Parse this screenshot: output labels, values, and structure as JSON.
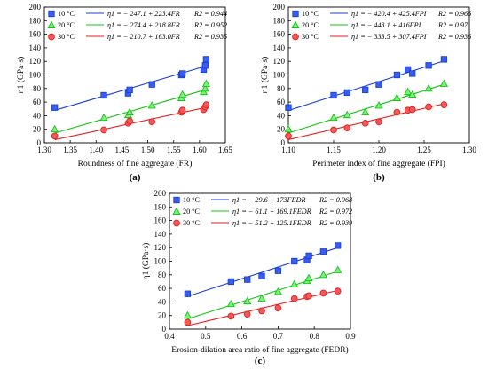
{
  "figure": {
    "series_colors": [
      "#1a3fd6",
      "#13c313",
      "#e61e1e"
    ],
    "marker_fills": [
      "#3a5cf0",
      "#7ff07f",
      "#f05a5a"
    ]
  },
  "chart_data": [
    {
      "type": "scatter",
      "panel_label": "(a)",
      "xlabel": "Roundness of fine aggregate (FR)",
      "ylabel": "η1 (GPa·s)",
      "xlim": [
        1.3,
        1.65
      ],
      "ylim": [
        0,
        200
      ],
      "xticks": [
        "1.30",
        "1.35",
        "1.40",
        "1.45",
        "1.50",
        "1.55",
        "1.60",
        "1.65"
      ],
      "yticks": [
        "0",
        "20",
        "40",
        "60",
        "80",
        "100",
        "120",
        "140",
        "160",
        "180",
        "200"
      ],
      "legend_position": "top-left",
      "series": [
        {
          "name": "10 °C",
          "equation": "η1 = − 247.1 + 223.4FR",
          "r2": "R2 = 0.944",
          "intercept": -247.1,
          "slope": 223.4,
          "x": [
            1.32,
            1.415,
            1.462,
            1.465,
            1.508,
            1.565,
            1.567,
            1.608,
            1.611,
            1.613
          ],
          "y": [
            52,
            70,
            73,
            78,
            86,
            100,
            102,
            108,
            114,
            123
          ]
        },
        {
          "name": "20 °C",
          "equation": "η1 = − 274.4 + 218.8FR",
          "r2": "R2 = 0.952",
          "intercept": -274.4,
          "slope": 218.8,
          "x": [
            1.32,
            1.415,
            1.462,
            1.465,
            1.508,
            1.565,
            1.567,
            1.608,
            1.611,
            1.613
          ],
          "y": [
            20,
            37,
            41,
            45,
            55,
            66,
            71,
            75,
            80,
            87
          ]
        },
        {
          "name": "30 °C",
          "equation": "η1 = − 210.7 + 163.0FR",
          "r2": "R2 = 0.935",
          "intercept": -210.7,
          "slope": 163.0,
          "x": [
            1.32,
            1.415,
            1.462,
            1.465,
            1.508,
            1.565,
            1.567,
            1.608,
            1.611,
            1.613
          ],
          "y": [
            10,
            19,
            29,
            32,
            31,
            45,
            48,
            49,
            53,
            56
          ]
        }
      ]
    },
    {
      "type": "scatter",
      "panel_label": "(b)",
      "xlabel": "Perimeter index of fine aggregate (FPI)",
      "ylabel": "η1 (GPa·s)",
      "xlim": [
        1.1,
        1.3
      ],
      "ylim": [
        0,
        200
      ],
      "xticks": [
        "1.10",
        "1.15",
        "1.20",
        "1.25",
        "1.30"
      ],
      "yticks": [
        "0",
        "20",
        "40",
        "60",
        "80",
        "100",
        "120",
        "140",
        "160",
        "180",
        "200"
      ],
      "legend_position": "top-left",
      "series": [
        {
          "name": "10 °C",
          "equation": "η1 = − 420.4 + 425.4FPI",
          "r2": "R2 = 0.966",
          "intercept": -420.4,
          "slope": 425.4,
          "x": [
            1.1,
            1.15,
            1.165,
            1.185,
            1.2,
            1.22,
            1.232,
            1.237,
            1.255,
            1.272
          ],
          "y": [
            52,
            70,
            74,
            78,
            86,
            100,
            108,
            102,
            114,
            123
          ]
        },
        {
          "name": "20 °C",
          "equation": "η1 = − 443.1 + 416FPI",
          "r2": "R2 = 0.97",
          "intercept": -443.1,
          "slope": 416.0,
          "x": [
            1.1,
            1.15,
            1.165,
            1.185,
            1.2,
            1.22,
            1.232,
            1.237,
            1.255,
            1.272
          ],
          "y": [
            20,
            37,
            41,
            45,
            55,
            66,
            75,
            71,
            80,
            87
          ]
        },
        {
          "name": "30 °C",
          "equation": "η1 = − 333.5 + 307.4FPI",
          "r2": "R2 = 0.936",
          "intercept": -333.5,
          "slope": 307.4,
          "x": [
            1.1,
            1.15,
            1.165,
            1.185,
            1.2,
            1.22,
            1.232,
            1.237,
            1.255,
            1.272
          ],
          "y": [
            10,
            19,
            22,
            29,
            31,
            45,
            48,
            49,
            53,
            56
          ]
        }
      ]
    },
    {
      "type": "scatter",
      "panel_label": "(c)",
      "xlabel": "Erosion-dilation area ratio of fine aggregate (FEDR)",
      "ylabel": "η1 (GPa·s)",
      "xlim": [
        0.4,
        0.9
      ],
      "ylim": [
        0,
        200
      ],
      "xticks": [
        "0.4",
        "0.5",
        "0.6",
        "0.7",
        "0.8",
        "0.9"
      ],
      "yticks": [
        "0",
        "20",
        "40",
        "60",
        "80",
        "100",
        "120",
        "140",
        "160",
        "180",
        "200"
      ],
      "legend_position": "top-left",
      "series": [
        {
          "name": "10 °C",
          "equation": "η1 = − 29.6 + 173FEDR",
          "r2": "R2 = 0.968",
          "intercept": -29.6,
          "slope": 173.0,
          "x": [
            0.45,
            0.57,
            0.615,
            0.655,
            0.7,
            0.745,
            0.78,
            0.785,
            0.825,
            0.865
          ],
          "y": [
            52,
            70,
            73,
            78,
            86,
            100,
            102,
            108,
            114,
            123
          ]
        },
        {
          "name": "20 °C",
          "equation": "η1 = − 61.1 + 169.1FEDR",
          "r2": "R2 = 0.972",
          "intercept": -61.1,
          "slope": 169.1,
          "x": [
            0.45,
            0.57,
            0.615,
            0.655,
            0.7,
            0.745,
            0.78,
            0.785,
            0.825,
            0.865
          ],
          "y": [
            20,
            37,
            41,
            45,
            55,
            66,
            71,
            75,
            80,
            87
          ]
        },
        {
          "name": "30 °C",
          "equation": "η1 = − 51.2 + 125.1FEDR",
          "r2": "R2 = 0.939",
          "intercept": -51.2,
          "slope": 125.1,
          "x": [
            0.45,
            0.57,
            0.615,
            0.655,
            0.7,
            0.745,
            0.78,
            0.785,
            0.825,
            0.865
          ],
          "y": [
            10,
            19,
            22,
            27,
            31,
            45,
            48,
            49,
            53,
            56
          ]
        }
      ]
    }
  ]
}
